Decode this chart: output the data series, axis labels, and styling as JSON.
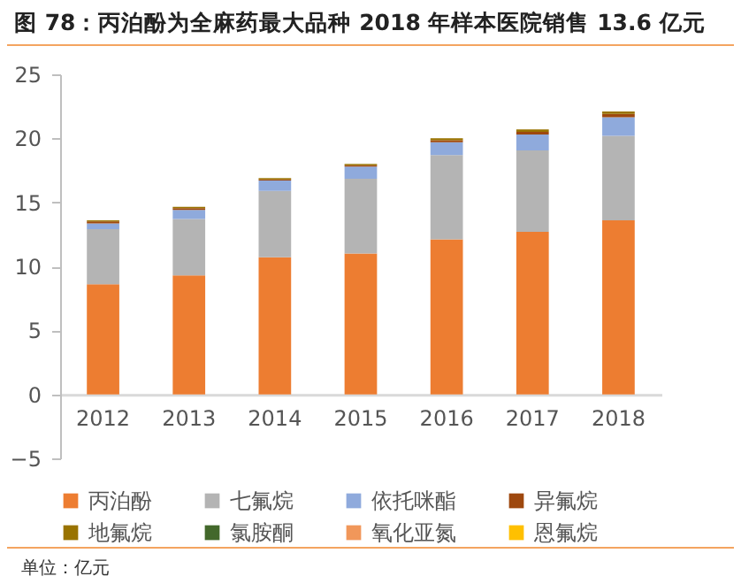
{
  "chart_data": {
    "type": "bar",
    "stacked": true,
    "title": "图 78：丙泊酚为全麻药最大品种 2018 年样本医院销售 13.6 亿元",
    "categories": [
      "2012",
      "2013",
      "2014",
      "2015",
      "2016",
      "2017",
      "2018"
    ],
    "series": [
      {
        "name": "丙泊酚",
        "color": "#ed7d31",
        "values": [
          8.6,
          9.3,
          10.7,
          11.0,
          12.1,
          12.7,
          13.6
        ]
      },
      {
        "name": "七氟烷",
        "color": "#b4b4b4",
        "values": [
          4.3,
          4.4,
          5.2,
          5.85,
          6.6,
          6.35,
          6.6
        ]
      },
      {
        "name": "依托咪酯",
        "color": "#8faadc",
        "values": [
          0.45,
          0.7,
          0.8,
          0.95,
          1.0,
          1.25,
          1.45
        ]
      },
      {
        "name": "异氟烷",
        "color": "#9e480e",
        "values": [
          0.15,
          0.15,
          0.1,
          0.1,
          0.15,
          0.2,
          0.25
        ]
      },
      {
        "name": "地氟烷",
        "color": "#997300",
        "values": [
          0.1,
          0.1,
          0.1,
          0.1,
          0.15,
          0.2,
          0.2
        ]
      },
      {
        "name": "氯胺酮",
        "color": "#43682b",
        "values": [
          0,
          0,
          0,
          0,
          0,
          0,
          0
        ]
      },
      {
        "name": "氧化亚氮",
        "color": "#f1975a",
        "values": [
          0,
          0,
          0,
          0,
          0,
          0,
          0
        ]
      },
      {
        "name": "恩氟烷",
        "color": "#ffc000",
        "values": [
          0,
          0,
          0,
          0,
          0,
          0,
          0
        ]
      }
    ],
    "ylim": [
      -5,
      25
    ],
    "yticks": [
      -5,
      0,
      5,
      10,
      15,
      20,
      25
    ],
    "grid": false,
    "legend": "bottom",
    "annotations": [
      "单位：亿元"
    ]
  }
}
